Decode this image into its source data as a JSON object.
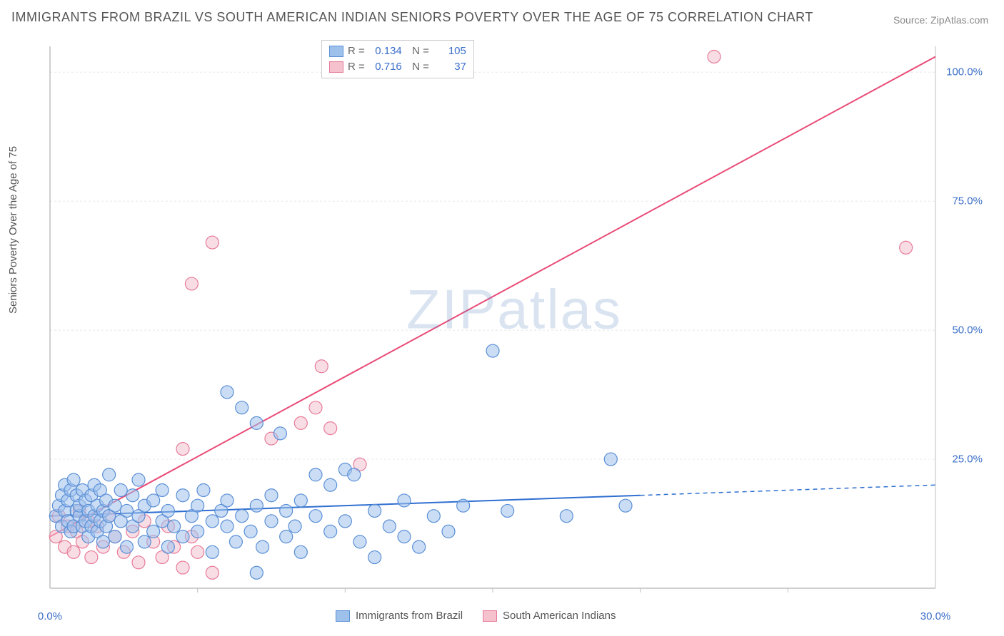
{
  "title": "IMMIGRANTS FROM BRAZIL VS SOUTH AMERICAN INDIAN SENIORS POVERTY OVER THE AGE OF 75 CORRELATION CHART",
  "source": "Source: ZipAtlas.com",
  "ylabel": "Seniors Poverty Over the Age of 75",
  "watermark": "ZIPatlas",
  "chart": {
    "type": "scatter",
    "background_color": "#ffffff",
    "grid_color": "#e8e8e8",
    "axis_color": "#bfbfbf",
    "xlim": [
      0,
      30
    ],
    "ylim": [
      0,
      105
    ],
    "x_ticks": [
      0,
      30
    ],
    "x_tick_labels": [
      "0.0%",
      "30.0%"
    ],
    "y_ticks": [
      25,
      50,
      75,
      100
    ],
    "y_tick_labels": [
      "25.0%",
      "50.0%",
      "75.0%",
      "100.0%"
    ],
    "x_minor_ticks": [
      5,
      10,
      15,
      20,
      25
    ],
    "marker_radius": 9,
    "marker_opacity": 0.55,
    "series": [
      {
        "name": "Immigrants from Brazil",
        "color_fill": "#9ec1ec",
        "color_stroke": "#5a8fd6",
        "R": "0.134",
        "N": "105",
        "trend": {
          "x1": 0,
          "y1": 14,
          "x2": 20,
          "y2": 18,
          "dash_after_x": 20,
          "x3": 30,
          "y3": 20,
          "color": "#2f6fd0",
          "width": 2
        },
        "points": [
          [
            0.2,
            14
          ],
          [
            0.3,
            16
          ],
          [
            0.4,
            12
          ],
          [
            0.4,
            18
          ],
          [
            0.5,
            15
          ],
          [
            0.5,
            20
          ],
          [
            0.6,
            13
          ],
          [
            0.6,
            17
          ],
          [
            0.7,
            19
          ],
          [
            0.7,
            11
          ],
          [
            0.8,
            12
          ],
          [
            0.8,
            21
          ],
          [
            0.9,
            15
          ],
          [
            0.9,
            18
          ],
          [
            1.0,
            14
          ],
          [
            1.0,
            16
          ],
          [
            1.1,
            12
          ],
          [
            1.1,
            19
          ],
          [
            1.2,
            13
          ],
          [
            1.2,
            17
          ],
          [
            1.3,
            10
          ],
          [
            1.3,
            15
          ],
          [
            1.4,
            18
          ],
          [
            1.4,
            12
          ],
          [
            1.5,
            14
          ],
          [
            1.5,
            20
          ],
          [
            1.6,
            11
          ],
          [
            1.6,
            16
          ],
          [
            1.7,
            13
          ],
          [
            1.7,
            19
          ],
          [
            1.8,
            9
          ],
          [
            1.8,
            15
          ],
          [
            1.9,
            12
          ],
          [
            1.9,
            17
          ],
          [
            2.0,
            14
          ],
          [
            2.0,
            22
          ],
          [
            2.2,
            10
          ],
          [
            2.2,
            16
          ],
          [
            2.4,
            13
          ],
          [
            2.4,
            19
          ],
          [
            2.6,
            8
          ],
          [
            2.6,
            15
          ],
          [
            2.8,
            12
          ],
          [
            2.8,
            18
          ],
          [
            3.0,
            14
          ],
          [
            3.0,
            21
          ],
          [
            3.2,
            9
          ],
          [
            3.2,
            16
          ],
          [
            3.5,
            11
          ],
          [
            3.5,
            17
          ],
          [
            3.8,
            13
          ],
          [
            3.8,
            19
          ],
          [
            4.0,
            8
          ],
          [
            4.0,
            15
          ],
          [
            4.2,
            12
          ],
          [
            4.5,
            18
          ],
          [
            4.5,
            10
          ],
          [
            4.8,
            14
          ],
          [
            5.0,
            16
          ],
          [
            5.0,
            11
          ],
          [
            5.2,
            19
          ],
          [
            5.5,
            13
          ],
          [
            5.5,
            7
          ],
          [
            5.8,
            15
          ],
          [
            6.0,
            12
          ],
          [
            6.0,
            17
          ],
          [
            6.0,
            38
          ],
          [
            6.3,
            9
          ],
          [
            6.5,
            14
          ],
          [
            6.5,
            35
          ],
          [
            6.8,
            11
          ],
          [
            7.0,
            16
          ],
          [
            7.0,
            32
          ],
          [
            7.2,
            8
          ],
          [
            7.5,
            13
          ],
          [
            7.5,
            18
          ],
          [
            7.8,
            30
          ],
          [
            8.0,
            10
          ],
          [
            8.0,
            15
          ],
          [
            8.3,
            12
          ],
          [
            8.5,
            17
          ],
          [
            8.5,
            7
          ],
          [
            9.0,
            14
          ],
          [
            9.0,
            22
          ],
          [
            9.5,
            11
          ],
          [
            9.5,
            20
          ],
          [
            10.0,
            13
          ],
          [
            10.0,
            23
          ],
          [
            10.3,
            22
          ],
          [
            10.5,
            9
          ],
          [
            11.0,
            15
          ],
          [
            11.0,
            6
          ],
          [
            11.5,
            12
          ],
          [
            12.0,
            10
          ],
          [
            12.0,
            17
          ],
          [
            12.5,
            8
          ],
          [
            13.0,
            14
          ],
          [
            13.5,
            11
          ],
          [
            14.0,
            16
          ],
          [
            15.0,
            46
          ],
          [
            15.5,
            15
          ],
          [
            17.5,
            14
          ],
          [
            19.0,
            25
          ],
          [
            19.5,
            16
          ],
          [
            7.0,
            3
          ]
        ]
      },
      {
        "name": "South American Indians",
        "color_fill": "#f4c1cd",
        "color_stroke": "#e77b98",
        "R": "0.716",
        "N": "37",
        "trend": {
          "x1": 0,
          "y1": 10,
          "x2": 30,
          "y2": 103,
          "color": "#e94b77",
          "width": 2
        },
        "points": [
          [
            0.2,
            10
          ],
          [
            0.3,
            14
          ],
          [
            0.5,
            8
          ],
          [
            0.6,
            12
          ],
          [
            0.8,
            7
          ],
          [
            0.9,
            11
          ],
          [
            1.0,
            15
          ],
          [
            1.1,
            9
          ],
          [
            1.3,
            13
          ],
          [
            1.4,
            6
          ],
          [
            1.6,
            12
          ],
          [
            1.8,
            8
          ],
          [
            2.0,
            14
          ],
          [
            2.2,
            10
          ],
          [
            2.5,
            7
          ],
          [
            2.8,
            11
          ],
          [
            3.0,
            5
          ],
          [
            3.2,
            13
          ],
          [
            3.5,
            9
          ],
          [
            3.8,
            6
          ],
          [
            4.0,
            12
          ],
          [
            4.2,
            8
          ],
          [
            4.5,
            4
          ],
          [
            4.8,
            10
          ],
          [
            5.0,
            7
          ],
          [
            5.5,
            3
          ],
          [
            4.5,
            27
          ],
          [
            4.8,
            59
          ],
          [
            5.5,
            67
          ],
          [
            7.5,
            29
          ],
          [
            8.5,
            32
          ],
          [
            9.0,
            35
          ],
          [
            9.2,
            43
          ],
          [
            9.5,
            31
          ],
          [
            10.5,
            24
          ],
          [
            22.5,
            103
          ],
          [
            29.0,
            66
          ]
        ]
      }
    ]
  },
  "legend_bottom": {
    "items": [
      "Immigrants from Brazil",
      "South American Indians"
    ]
  }
}
